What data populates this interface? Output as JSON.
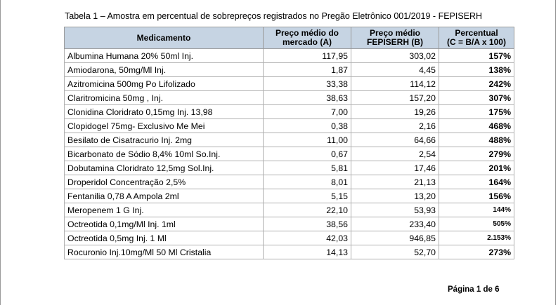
{
  "caption": "Tabela 1 – Amostra em percentual de sobrepreços registrados no Pregão Eletrônico 001/2019 - FEPISERH",
  "headers": {
    "col1": "Medicamento",
    "col2_line1": "Preço médio do",
    "col2_line2": "mercado (A)",
    "col3_line1": "Preço médio",
    "col3_line2": "FEPISERH (B)",
    "col4_line1": "Percentual",
    "col4_line2": "(C = B/A x 100)"
  },
  "rows": [
    {
      "name": "Albumina Humana 20% 50ml Inj.",
      "market": "117,95",
      "fepiserh": "303,02",
      "pct": "157%"
    },
    {
      "name": "Amiodarona, 50mg/Ml Inj.",
      "market": "1,87",
      "fepiserh": "4,45",
      "pct": "138%"
    },
    {
      "name": "Azitromicina 500mg Po Lifolizado",
      "market": "33,38",
      "fepiserh": "114,12",
      "pct": "242%"
    },
    {
      "name": "Claritromicina 50mg , Inj.",
      "market": "38,63",
      "fepiserh": "157,20",
      "pct": "307%"
    },
    {
      "name": "Clonidina Cloridrato 0,15mg  Inj. 13,98",
      "market": "7,00",
      "fepiserh": "19,26",
      "pct": "175%"
    },
    {
      "name": "Clopidogel 75mg- Exclusivo Me Mei",
      "market": "0,38",
      "fepiserh": "2,16",
      "pct": "468%"
    },
    {
      "name": "Besilato de Cisatracurio Inj. 2mg",
      "market": "11,00",
      "fepiserh": "64,66",
      "pct": "488%"
    },
    {
      "name": "Bicarbonato de Sódio 8,4%  10ml So.Inj.",
      "market": "0,67",
      "fepiserh": "2,54",
      "pct": "279%"
    },
    {
      "name": "Dobutamina Cloridrato 12,5mg Sol.Inj.",
      "market": "5,81",
      "fepiserh": "17,46",
      "pct": "201%"
    },
    {
      "name": "Droperidol Concentração 2,5%",
      "market": "8,01",
      "fepiserh": "21,13",
      "pct": "164%"
    },
    {
      "name": "Fentanilia 0,78 A Ampola 2ml",
      "market": "5,15",
      "fepiserh": "13,20",
      "pct": "156%"
    },
    {
      "name": "Meropenem 1 G Inj.",
      "market": "22,10",
      "fepiserh": "53,93",
      "pct": "144%"
    },
    {
      "name": "Octreotida 0,1mg/Ml Inj. 1ml",
      "market": "38,56",
      "fepiserh": "233,40",
      "pct": "505%"
    },
    {
      "name": "Octreotida 0,5mg Inj. 1 Ml",
      "market": "42,03",
      "fepiserh": "946,85",
      "pct": "2.153%"
    },
    {
      "name": "Rocuronio Inj.10mg/Ml  50 Ml Cristalia",
      "market": "14,13",
      "fepiserh": "52,70",
      "pct": "273%"
    }
  ],
  "footer": "Página 1 de 6"
}
